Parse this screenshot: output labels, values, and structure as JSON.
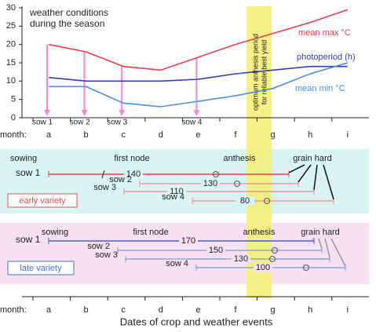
{
  "chart_data": {
    "type": "line",
    "title": [
      "weather conditions",
      "during the season"
    ],
    "month_label": "month:",
    "categories": [
      "a",
      "b",
      "c",
      "d",
      "e",
      "f",
      "g",
      "h",
      "i"
    ],
    "ylim": [
      0,
      30
    ],
    "yticks": [
      0,
      5,
      10,
      15,
      20,
      25,
      30
    ],
    "series": [
      {
        "name": "mean max °C",
        "color": "#e0404e",
        "values": [
          20,
          18,
          14,
          13,
          16.5,
          20,
          23,
          26,
          29.5
        ]
      },
      {
        "name": "photoperiod (h)",
        "color": "#2f3fb0",
        "values": [
          11,
          10,
          10,
          10,
          10.5,
          12,
          13,
          14,
          14
        ]
      },
      {
        "name": "mean min °C",
        "color": "#4a8ee0",
        "values": [
          8.5,
          8.5,
          4,
          3,
          4.5,
          6,
          8,
          12,
          15
        ]
      }
    ],
    "sow_labels": [
      "sow 1",
      "sow 2",
      "sow 3",
      null,
      "sow 4",
      null,
      null,
      null,
      null
    ],
    "band_label": [
      "optimum anthesis period",
      "for reliable best yield"
    ]
  },
  "timeline": {
    "x_label": "Dates of crop and weather events",
    "early_variety": {
      "label": "early variety",
      "stages": [
        "sowing",
        "first node",
        "anthesis",
        "grain hard"
      ],
      "rows": [
        {
          "label": "sow 1",
          "days": "140"
        },
        {
          "label": "sow 2",
          "days": "130"
        },
        {
          "label": "sow 3",
          "days": "110"
        },
        {
          "label": "sow 4",
          "days": "80"
        }
      ]
    },
    "late_variety": {
      "label": "late variety",
      "stages": [
        "sowing",
        "first node",
        "anthesis",
        "grain hard"
      ],
      "rows": [
        {
          "label": "sow 1",
          "days": "170"
        },
        {
          "label": "sow 2",
          "days": "150"
        },
        {
          "label": "sow 3",
          "days": "130"
        },
        {
          "label": "sow 4",
          "days": "100"
        }
      ]
    }
  }
}
